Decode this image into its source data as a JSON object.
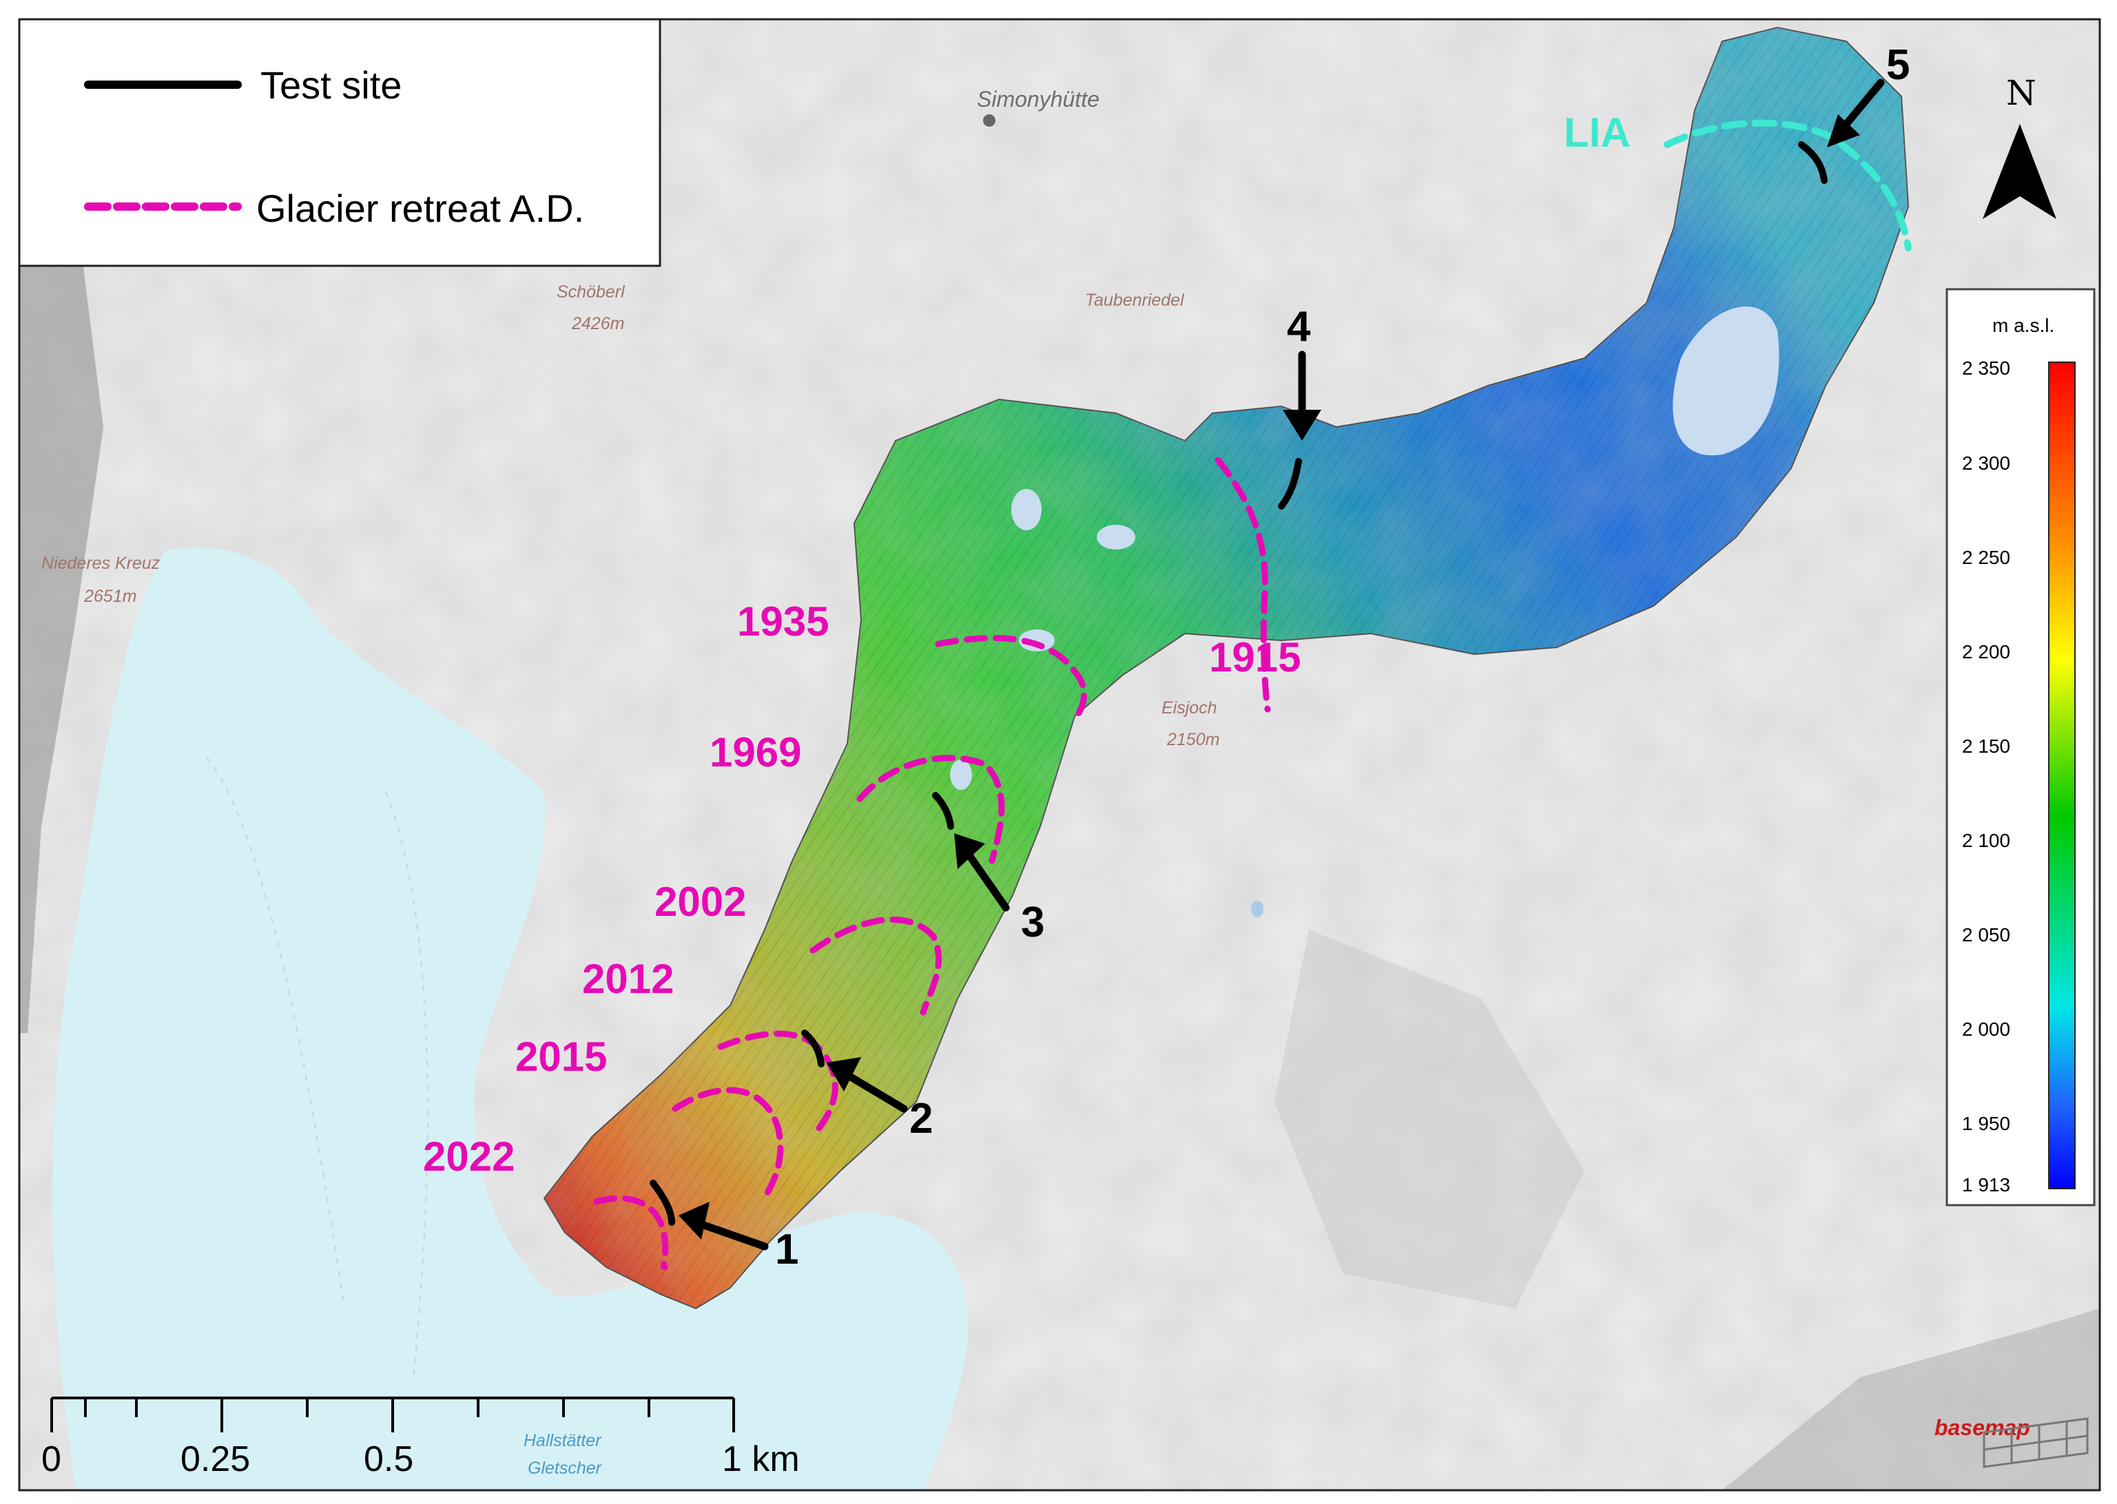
{
  "legend": {
    "items": [
      {
        "label": "Test site",
        "style": "solid",
        "color": "#000000"
      },
      {
        "label": "Glacier retreat A.D.",
        "style": "dashed",
        "color": "#e60ab4"
      }
    ]
  },
  "north_arrow": {
    "label": "N"
  },
  "colorbar": {
    "title": "m a.s.l.",
    "ticks": [
      "2 350",
      "2 300",
      "2 250",
      "2 200",
      "2 150",
      "2 100",
      "2 050",
      "2 000",
      "1 950",
      "1 913"
    ],
    "min": 1913,
    "max": 2350,
    "colors": [
      "#ff0000",
      "#ff7a00",
      "#ffff00",
      "#00c800",
      "#00e6e6",
      "#1e64ff",
      "#0000ff"
    ]
  },
  "scale_bar": {
    "tick_labels": [
      "0",
      "0.25",
      "0.5",
      "1 km"
    ]
  },
  "place_labels": [
    {
      "name": "Simonyhütte"
    },
    {
      "name": "Schöberl",
      "elev": "2426m"
    },
    {
      "name": "Taubenriedel"
    },
    {
      "name": "Niederes Kreuz",
      "elev": "2651m"
    },
    {
      "name": "Eisjoch",
      "elev": "2150m"
    },
    {
      "name": "Hallstätter",
      "elev": "Gletscher"
    }
  ],
  "retreat_years": [
    "LIA",
    "1915",
    "1935",
    "1969",
    "2002",
    "2012",
    "2015",
    "2022"
  ],
  "test_sites": [
    "1",
    "2",
    "3",
    "4",
    "5"
  ],
  "attribution": "basemap",
  "colors": {
    "retreat": "#e60ab4",
    "lia": "#3ee8d0",
    "site": "#000000"
  }
}
